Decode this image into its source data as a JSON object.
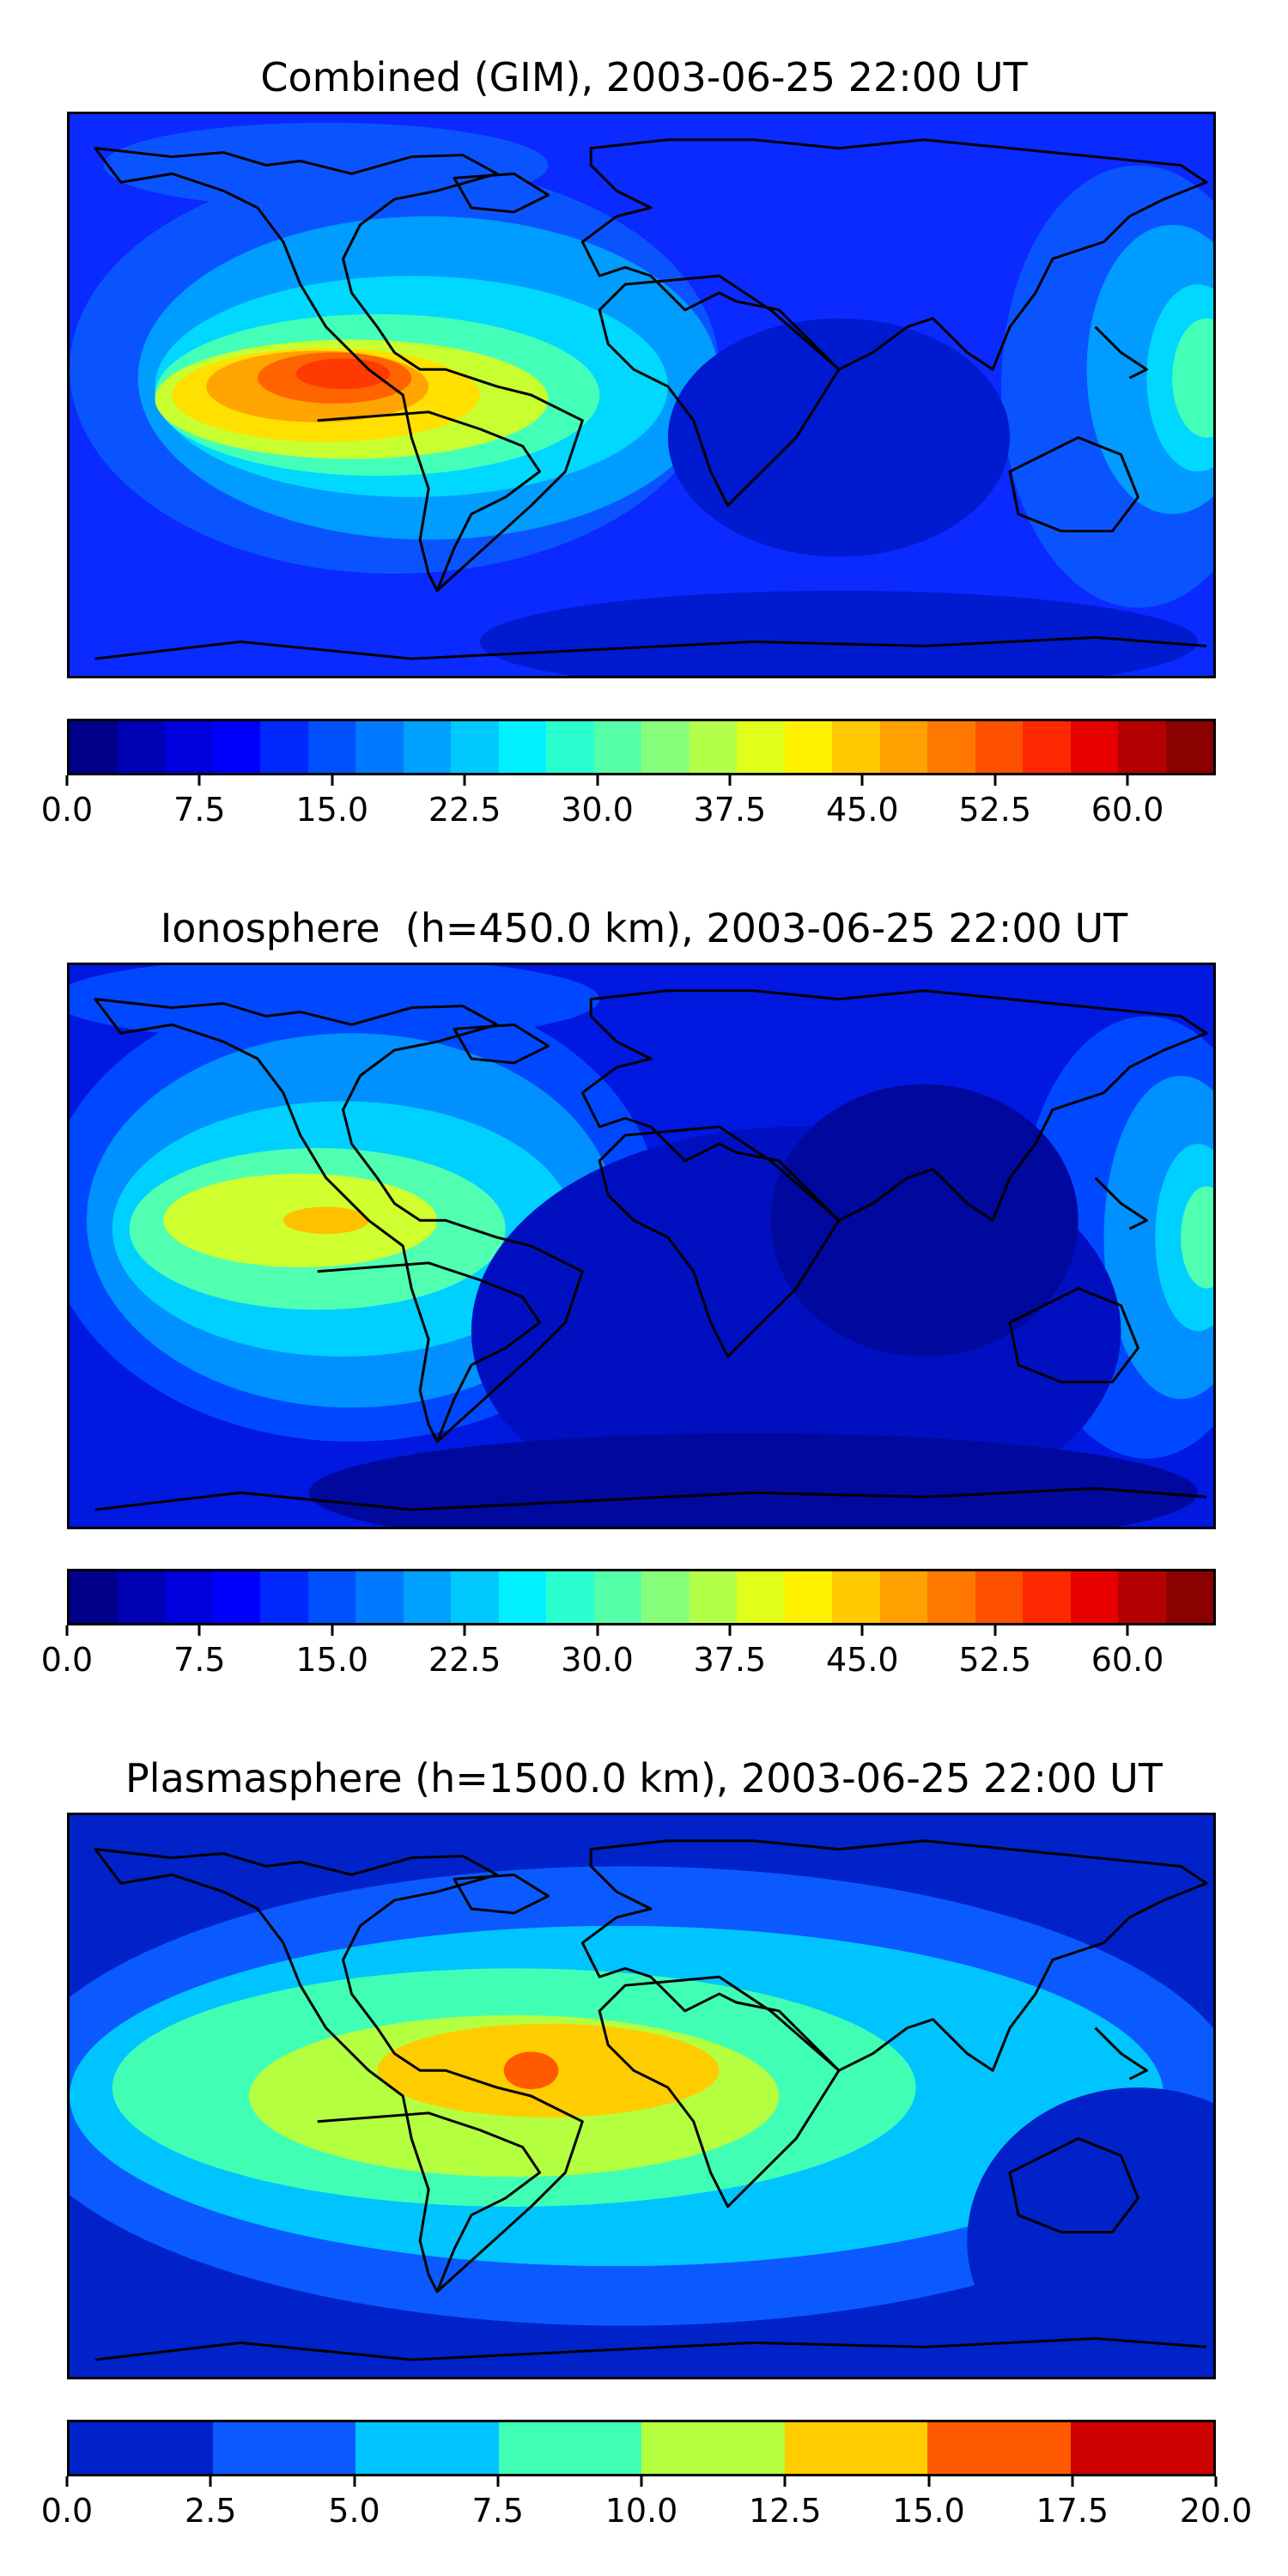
{
  "panels": [
    {
      "title": "Combined (GIM), 2003-06-25 22:00 UT",
      "colorbar": {
        "min": 0.0,
        "max": 65.0,
        "tick_values": [
          0.0,
          7.5,
          15.0,
          22.5,
          30.0,
          37.5,
          45.0,
          52.5,
          60.0
        ],
        "tick_labels": [
          "0.0",
          "7.5",
          "15.0",
          "22.5",
          "30.0",
          "37.5",
          "45.0",
          "52.5",
          "60.0"
        ],
        "colors": [
          "#00008b",
          "#0000b4",
          "#0000dc",
          "#0000ff",
          "#0028ff",
          "#0050ff",
          "#0078ff",
          "#00a0ff",
          "#00c8ff",
          "#00f0ff",
          "#2affd0",
          "#55ffa8",
          "#88ff7a",
          "#b4ff4a",
          "#e0ff1a",
          "#fff000",
          "#ffc800",
          "#ffa000",
          "#ff7800",
          "#ff5000",
          "#ff2800",
          "#e60000",
          "#b40000",
          "#8b0000"
        ]
      },
      "map_colors": {
        "bg": "#0a2aff",
        "c1": "#0a54ff",
        "c2": "#009cff",
        "c3": "#00d8ff",
        "c4": "#44ffb8",
        "c5": "#c8ff30",
        "c6": "#ffe000",
        "c7": "#ffa400",
        "c8": "#ff6400",
        "c9": "#ff3a00",
        "cool": "#001ad0",
        "cool2": "#0010b0"
      }
    },
    {
      "title": "Ionosphere  (h=450.0 km), 2003-06-25 22:00 UT",
      "colorbar": {
        "min": 0.0,
        "max": 65.0,
        "tick_values": [
          0.0,
          7.5,
          15.0,
          22.5,
          30.0,
          37.5,
          45.0,
          52.5,
          60.0
        ],
        "tick_labels": [
          "0.0",
          "7.5",
          "15.0",
          "22.5",
          "30.0",
          "37.5",
          "45.0",
          "52.5",
          "60.0"
        ],
        "colors": [
          "#00008b",
          "#0000b4",
          "#0000dc",
          "#0000ff",
          "#0028ff",
          "#0050ff",
          "#0078ff",
          "#00a0ff",
          "#00c8ff",
          "#00f0ff",
          "#2affd0",
          "#55ffa8",
          "#88ff7a",
          "#b4ff4a",
          "#e0ff1a",
          "#fff000",
          "#ffc800",
          "#ffa000",
          "#ff7800",
          "#ff5000",
          "#ff2800",
          "#e60000",
          "#b40000",
          "#8b0000"
        ]
      },
      "map_colors": {
        "bg": "#0018e0",
        "c1": "#0048ff",
        "c2": "#0090ff",
        "c3": "#00d0ff",
        "c4": "#50ffb0",
        "c5": "#d0ff30",
        "c6": "#ffc000",
        "cool": "#0010c0",
        "cool2": "#00089e"
      }
    },
    {
      "title": "Plasmasphere (h=1500.0 km), 2003-06-25 22:00 UT",
      "colorbar": {
        "min": 0.0,
        "max": 20.0,
        "tick_values": [
          0.0,
          2.5,
          5.0,
          7.5,
          10.0,
          12.5,
          15.0,
          17.5,
          20.0
        ],
        "tick_labels": [
          "0.0",
          "2.5",
          "5.0",
          "7.5",
          "10.0",
          "12.5",
          "15.0",
          "17.5",
          "20.0"
        ],
        "colors": [
          "#0022c8",
          "#0a5aff",
          "#00c4ff",
          "#40ffb4",
          "#b4ff40",
          "#ffcc00",
          "#ff5a00",
          "#cc0000"
        ]
      },
      "map_colors": {
        "bg": "#0022c8",
        "c1": "#0a5aff",
        "c2": "#00c4ff",
        "c3": "#40ffb4",
        "c4": "#b4ff40",
        "c5": "#ffcc00",
        "c6": "#ff5a00"
      }
    }
  ]
}
